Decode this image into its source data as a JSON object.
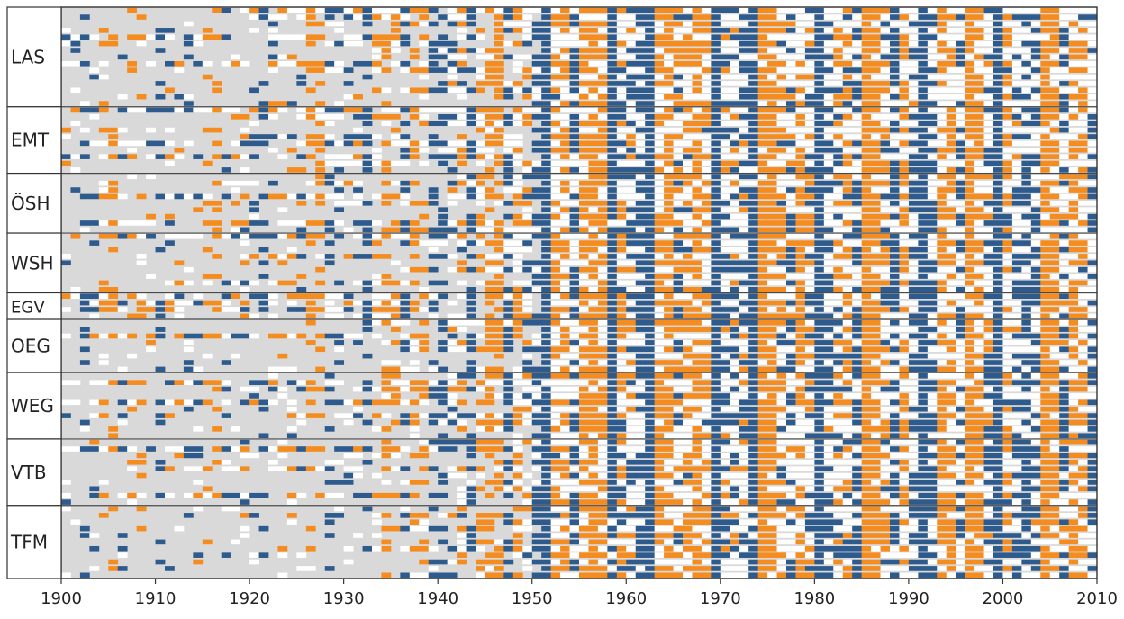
{
  "chart_data": {
    "type": "heatmap",
    "title": "",
    "xlabel": "",
    "ylabel": "",
    "xlim": [
      1900,
      2010
    ],
    "grid": false,
    "legend": "none",
    "colors": {
      "missing": "#d9d9d9",
      "neutral": "#ffffff",
      "positive": "#f58c1f",
      "negative": "#2e5b8d",
      "frame": "#333333"
    },
    "x_ticks": [
      "1900",
      "1910",
      "1920",
      "1930",
      "1940",
      "1950",
      "1960",
      "1970",
      "1980",
      "1990",
      "2000",
      "2010"
    ],
    "groups": [
      {
        "label": "LAS",
        "rows": 15,
        "data_start": [
          1916,
          1920,
          1936,
          1944,
          1900,
          1928,
          1934,
          1938,
          1900,
          1926,
          1944,
          1940,
          1932,
          1946,
          1950
        ]
      },
      {
        "label": "EMT",
        "rows": 10,
        "data_start": [
          1900,
          1918,
          1934,
          1942,
          1920,
          1902,
          1938,
          1900,
          1928,
          1946
        ]
      },
      {
        "label": "ÖSH",
        "rows": 9,
        "data_start": [
          1942,
          1912,
          1936,
          1900,
          1924,
          1948,
          1938,
          1902,
          1932
        ]
      },
      {
        "label": "WSH",
        "rows": 9,
        "data_start": [
          1904,
          1930,
          1946,
          1918,
          1940,
          1936,
          1950,
          1910,
          1944
        ]
      },
      {
        "label": "EGV",
        "rows": 4,
        "data_start": [
          1900,
          1902,
          1900,
          1926
        ]
      },
      {
        "label": "OEG",
        "rows": 8,
        "data_start": [
          1932,
          1940,
          1900,
          1926,
          1936,
          1946,
          1950,
          1934
        ]
      },
      {
        "label": "WEG",
        "rows": 10,
        "data_start": [
          1944,
          1900,
          1916,
          1938,
          1900,
          1948,
          1924,
          1930,
          1942,
          1950
        ]
      },
      {
        "label": "VTB",
        "rows": 10,
        "data_start": [
          1938,
          1900,
          1930,
          1946,
          1910,
          1940,
          1926,
          1944,
          1902,
          1950
        ]
      },
      {
        "label": "TFM",
        "rows": 11,
        "data_start": [
          1948,
          1930,
          1944,
          1934,
          1950,
          1940,
          1932,
          1946,
          1938,
          1949,
          1936
        ]
      }
    ]
  }
}
